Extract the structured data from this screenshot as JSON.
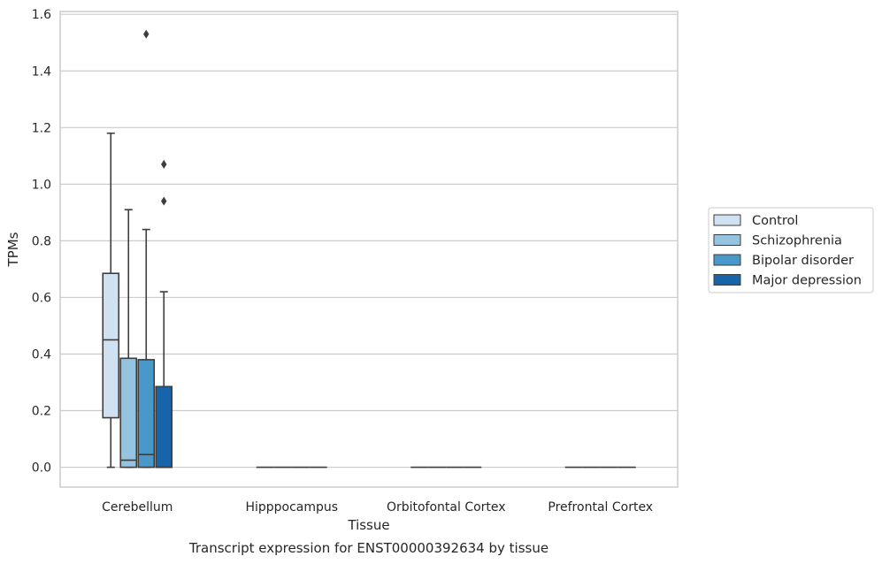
{
  "chart_data": {
    "type": "box",
    "caption": "Transcript expression for ENST00000392634 by tissue",
    "xlabel": "Tissue",
    "ylabel": "TPMs",
    "ylim": [
      -0.07,
      1.61
    ],
    "yticks": [
      "0.0",
      "0.2",
      "0.4",
      "0.6",
      "0.8",
      "1.0",
      "1.2",
      "1.4",
      "1.6"
    ],
    "grid": true,
    "legend_position": "right",
    "categories": [
      "Cerebellum",
      "Hipppocampus",
      "Orbitofontal Cortex",
      "Prefrontal Cortex"
    ],
    "series": [
      {
        "name": "Control",
        "color": "#d0e1f2",
        "boxes": [
          {
            "min": 0.0,
            "q1": 0.175,
            "median": 0.45,
            "q3": 0.685,
            "max": 1.18,
            "outliers": []
          },
          {
            "min": 0,
            "q1": 0,
            "median": 0,
            "q3": 0,
            "max": 0,
            "outliers": []
          },
          {
            "min": 0,
            "q1": 0,
            "median": 0,
            "q3": 0,
            "max": 0,
            "outliers": []
          },
          {
            "min": 0,
            "q1": 0,
            "median": 0,
            "q3": 0,
            "max": 0,
            "outliers": []
          }
        ]
      },
      {
        "name": "Schizophrenia",
        "color": "#94c4df",
        "boxes": [
          {
            "min": 0.0,
            "q1": 0.0,
            "median": 0.025,
            "q3": 0.385,
            "max": 0.91,
            "outliers": []
          },
          {
            "min": 0,
            "q1": 0,
            "median": 0,
            "q3": 0,
            "max": 0,
            "outliers": []
          },
          {
            "min": 0,
            "q1": 0,
            "median": 0,
            "q3": 0,
            "max": 0,
            "outliers": []
          },
          {
            "min": 0,
            "q1": 0,
            "median": 0,
            "q3": 0,
            "max": 0,
            "outliers": []
          }
        ]
      },
      {
        "name": "Bipolar disorder",
        "color": "#4a98c9",
        "boxes": [
          {
            "min": 0.0,
            "q1": 0.0,
            "median": 0.045,
            "q3": 0.38,
            "max": 0.84,
            "outliers": [
              1.53
            ]
          },
          {
            "min": 0,
            "q1": 0,
            "median": 0,
            "q3": 0,
            "max": 0,
            "outliers": []
          },
          {
            "min": 0,
            "q1": 0,
            "median": 0,
            "q3": 0,
            "max": 0,
            "outliers": []
          },
          {
            "min": 0,
            "q1": 0,
            "median": 0,
            "q3": 0,
            "max": 0,
            "outliers": []
          }
        ]
      },
      {
        "name": "Major depression",
        "color": "#1764ab",
        "boxes": [
          {
            "min": 0.0,
            "q1": 0.0,
            "median": 0.0,
            "q3": 0.285,
            "max": 0.62,
            "outliers": [
              0.94,
              1.07
            ]
          },
          {
            "min": 0,
            "q1": 0,
            "median": 0,
            "q3": 0,
            "max": 0,
            "outliers": []
          },
          {
            "min": 0,
            "q1": 0,
            "median": 0,
            "q3": 0,
            "max": 0,
            "outliers": []
          },
          {
            "min": 0,
            "q1": 0,
            "median": 0,
            "q3": 0,
            "max": 0,
            "outliers": []
          }
        ]
      }
    ]
  }
}
